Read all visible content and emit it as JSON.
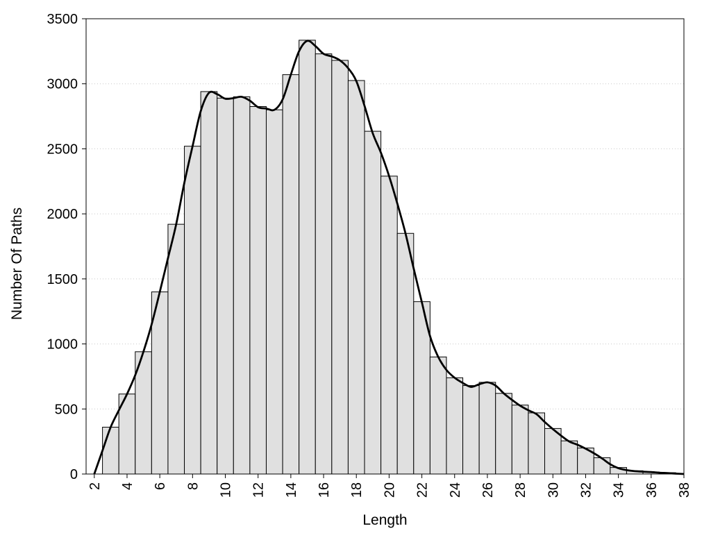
{
  "chart_data": {
    "type": "bar",
    "xlabel": "Length",
    "ylabel": "Number Of Paths",
    "xlim": [
      1.5,
      38
    ],
    "ylim": [
      0,
      3500
    ],
    "xticks": [
      2,
      4,
      6,
      8,
      10,
      12,
      14,
      16,
      18,
      20,
      22,
      24,
      26,
      28,
      30,
      32,
      34,
      36,
      38
    ],
    "yticks": [
      0,
      500,
      1000,
      1500,
      2000,
      2500,
      3000,
      3500
    ],
    "grid": "y-dotted",
    "bar_color": "#e0e0e0",
    "curve_color": "#000000",
    "bins": [
      {
        "x0": 2.5,
        "x1": 3.5,
        "value": 360
      },
      {
        "x0": 3.5,
        "x1": 4.5,
        "value": 615
      },
      {
        "x0": 4.5,
        "x1": 5.5,
        "value": 940
      },
      {
        "x0": 5.5,
        "x1": 6.5,
        "value": 1400
      },
      {
        "x0": 6.5,
        "x1": 7.5,
        "value": 1920
      },
      {
        "x0": 7.5,
        "x1": 8.5,
        "value": 2520
      },
      {
        "x0": 8.5,
        "x1": 9.5,
        "value": 2940
      },
      {
        "x0": 9.5,
        "x1": 10.5,
        "value": 2890
      },
      {
        "x0": 10.5,
        "x1": 11.5,
        "value": 2900
      },
      {
        "x0": 11.5,
        "x1": 12.5,
        "value": 2825
      },
      {
        "x0": 12.5,
        "x1": 13.5,
        "value": 2800
      },
      {
        "x0": 13.5,
        "x1": 14.5,
        "value": 3070
      },
      {
        "x0": 14.5,
        "x1": 15.5,
        "value": 3335
      },
      {
        "x0": 15.5,
        "x1": 16.5,
        "value": 3230
      },
      {
        "x0": 16.5,
        "x1": 17.5,
        "value": 3180
      },
      {
        "x0": 17.5,
        "x1": 18.5,
        "value": 3025
      },
      {
        "x0": 18.5,
        "x1": 19.5,
        "value": 2635
      },
      {
        "x0": 19.5,
        "x1": 20.5,
        "value": 2290
      },
      {
        "x0": 20.5,
        "x1": 21.5,
        "value": 1850
      },
      {
        "x0": 21.5,
        "x1": 22.5,
        "value": 1325
      },
      {
        "x0": 22.5,
        "x1": 23.5,
        "value": 900
      },
      {
        "x0": 23.5,
        "x1": 24.5,
        "value": 740
      },
      {
        "x0": 24.5,
        "x1": 25.5,
        "value": 680
      },
      {
        "x0": 25.5,
        "x1": 26.5,
        "value": 705
      },
      {
        "x0": 26.5,
        "x1": 27.5,
        "value": 620
      },
      {
        "x0": 27.5,
        "x1": 28.5,
        "value": 530
      },
      {
        "x0": 28.5,
        "x1": 29.5,
        "value": 470
      },
      {
        "x0": 29.5,
        "x1": 30.5,
        "value": 350
      },
      {
        "x0": 30.5,
        "x1": 31.5,
        "value": 255
      },
      {
        "x0": 31.5,
        "x1": 32.5,
        "value": 200
      },
      {
        "x0": 32.5,
        "x1": 33.5,
        "value": 125
      },
      {
        "x0": 33.5,
        "x1": 34.5,
        "value": 50
      },
      {
        "x0": 34.5,
        "x1": 35.5,
        "value": 25
      },
      {
        "x0": 35.5,
        "x1": 36.5,
        "value": 15
      },
      {
        "x0": 36.5,
        "x1": 37.5,
        "value": 10
      },
      {
        "x0": 37.5,
        "x1": 38,
        "value": 5
      }
    ],
    "curve": [
      [
        2,
        0
      ],
      [
        2.5,
        180
      ],
      [
        3,
        360
      ],
      [
        3.5,
        490
      ],
      [
        4,
        615
      ],
      [
        4.5,
        760
      ],
      [
        5,
        940
      ],
      [
        5.5,
        1150
      ],
      [
        6,
        1400
      ],
      [
        6.5,
        1660
      ],
      [
        7,
        1920
      ],
      [
        7.5,
        2240
      ],
      [
        8,
        2520
      ],
      [
        8.5,
        2790
      ],
      [
        9,
        2930
      ],
      [
        9.5,
        2920
      ],
      [
        10,
        2885
      ],
      [
        10.5,
        2890
      ],
      [
        11,
        2900
      ],
      [
        11.5,
        2870
      ],
      [
        12,
        2820
      ],
      [
        12.5,
        2810
      ],
      [
        13,
        2800
      ],
      [
        13.5,
        2880
      ],
      [
        14,
        3070
      ],
      [
        14.5,
        3250
      ],
      [
        15,
        3330
      ],
      [
        15.5,
        3290
      ],
      [
        16,
        3230
      ],
      [
        16.5,
        3210
      ],
      [
        17,
        3180
      ],
      [
        17.5,
        3120
      ],
      [
        18,
        3020
      ],
      [
        18.5,
        2830
      ],
      [
        19,
        2620
      ],
      [
        19.5,
        2470
      ],
      [
        20,
        2290
      ],
      [
        20.5,
        2080
      ],
      [
        21,
        1850
      ],
      [
        21.5,
        1580
      ],
      [
        22,
        1320
      ],
      [
        22.5,
        1060
      ],
      [
        23,
        900
      ],
      [
        23.5,
        800
      ],
      [
        24,
        740
      ],
      [
        24.5,
        700
      ],
      [
        25,
        670
      ],
      [
        25.5,
        690
      ],
      [
        26,
        705
      ],
      [
        26.5,
        680
      ],
      [
        27,
        620
      ],
      [
        27.5,
        570
      ],
      [
        28,
        525
      ],
      [
        28.5,
        490
      ],
      [
        29,
        460
      ],
      [
        29.5,
        400
      ],
      [
        30,
        345
      ],
      [
        30.5,
        295
      ],
      [
        31,
        250
      ],
      [
        31.5,
        225
      ],
      [
        32,
        195
      ],
      [
        32.5,
        160
      ],
      [
        33,
        120
      ],
      [
        33.5,
        75
      ],
      [
        34,
        45
      ],
      [
        34.5,
        30
      ],
      [
        35,
        22
      ],
      [
        35.5,
        18
      ],
      [
        36,
        15
      ],
      [
        36.5,
        10
      ],
      [
        37,
        7
      ],
      [
        37.5,
        3
      ],
      [
        38,
        0
      ]
    ]
  }
}
